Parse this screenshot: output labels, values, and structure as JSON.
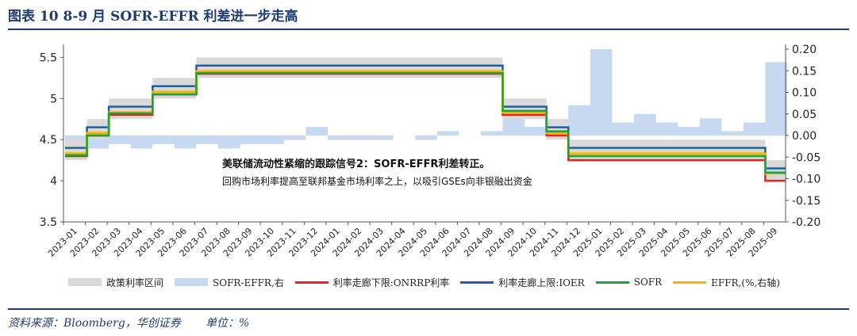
{
  "header": {
    "title": "图表 10   8-9 月 SOFR-EFFR 利差进一步走高"
  },
  "footer": {
    "source": "资料来源：Bloomberg，华创证券       单位：%"
  },
  "annotation": {
    "heading": "美联储流动性紧缩的跟踪信号2：SOFR-EFFR利差转正。",
    "body": "回购市场利率提高至联邦基金市场利率之上，以吸引GSEs向非银融出资金"
  },
  "legend": {
    "items": [
      {
        "label": "政策利率区间",
        "kind": "box",
        "color": "#d9d9d9"
      },
      {
        "label": "SOFR-EFFR,右",
        "kind": "box",
        "color": "#c6d9f1"
      },
      {
        "label": "利率走廊下限:ONRRP利率",
        "kind": "line",
        "color": "#e8221c"
      },
      {
        "label": "利率走廊上限:IOER",
        "kind": "line",
        "color": "#1f5faa"
      },
      {
        "label": "SOFR",
        "kind": "line",
        "color": "#1aa33a"
      },
      {
        "label": "EFFR,(%,右轴)",
        "kind": "line",
        "color": "#f6b400"
      }
    ]
  },
  "chart_data": {
    "type": "line",
    "x_tick_labels": [
      "2023-01",
      "2023-02",
      "2023-03",
      "2023-04",
      "2023-05",
      "2023-06",
      "2023-07",
      "2023-08",
      "2023-09",
      "2023-10",
      "2023-11",
      "2023-12",
      "2024-01",
      "2024-02",
      "2024-03",
      "2024-04",
      "2024-05",
      "2024-06",
      "2024-07",
      "2024-08",
      "2024-09",
      "2024-10",
      "2024-11",
      "2024-12",
      "2025-01",
      "2025-02",
      "2025-03",
      "2025-04",
      "2025-05",
      "2025-06",
      "2025-07",
      "2025-08",
      "2025-09"
    ],
    "left_axis": {
      "ylim": [
        3.5,
        5.6
      ],
      "ticks": [
        "3.5",
        "4",
        "4.5",
        "5",
        "5.5"
      ]
    },
    "right_axis": {
      "ylim": [
        -0.2,
        0.2
      ],
      "ticks": [
        "0.20",
        "0.15",
        "0.10",
        "0.05",
        "0.00",
        "-0.05",
        "-0.10",
        "-0.15",
        "-0.20"
      ]
    },
    "policy_range": {
      "segments": [
        {
          "from": "2023-01",
          "to": "2023-02",
          "lower": 4.25,
          "upper": 4.5
        },
        {
          "from": "2023-02",
          "to": "2023-03",
          "lower": 4.5,
          "upper": 4.75
        },
        {
          "from": "2023-03",
          "to": "2023-05",
          "lower": 4.75,
          "upper": 5.0
        },
        {
          "from": "2023-05",
          "to": "2023-07",
          "lower": 5.0,
          "upper": 5.25
        },
        {
          "from": "2023-07",
          "to": "2024-09",
          "lower": 5.25,
          "upper": 5.5
        },
        {
          "from": "2024-09",
          "to": "2024-11",
          "lower": 4.75,
          "upper": 5.0
        },
        {
          "from": "2024-11",
          "to": "2024-12",
          "lower": 4.5,
          "upper": 4.75
        },
        {
          "from": "2024-12",
          "to": "2025-09",
          "lower": 4.25,
          "upper": 4.5
        },
        {
          "from": "2025-09",
          "to": "2025-10",
          "lower": 4.0,
          "upper": 4.25
        }
      ]
    },
    "series": [
      {
        "name": "利率走廊下限:ONRRP利率",
        "axis": "left",
        "steps": [
          [
            "2023-01",
            4.3
          ],
          [
            "2023-02",
            4.55
          ],
          [
            "2023-03",
            4.8
          ],
          [
            "2023-05",
            5.05
          ],
          [
            "2023-07",
            5.3
          ],
          [
            "2024-09",
            4.8
          ],
          [
            "2024-11",
            4.55
          ],
          [
            "2024-12",
            4.25
          ],
          [
            "2025-09",
            4.0
          ]
        ]
      },
      {
        "name": "利率走廊上限:IOER",
        "axis": "left",
        "steps": [
          [
            "2023-01",
            4.4
          ],
          [
            "2023-02",
            4.65
          ],
          [
            "2023-03",
            4.9
          ],
          [
            "2023-05",
            5.15
          ],
          [
            "2023-07",
            5.4
          ],
          [
            "2024-09",
            4.9
          ],
          [
            "2024-11",
            4.65
          ],
          [
            "2024-12",
            4.4
          ],
          [
            "2025-09",
            4.15
          ]
        ]
      },
      {
        "name": "EFFR",
        "axis": "left",
        "steps": [
          [
            "2023-01",
            4.33
          ],
          [
            "2023-02",
            4.58
          ],
          [
            "2023-03",
            4.83
          ],
          [
            "2023-05",
            5.08
          ],
          [
            "2023-07",
            5.33
          ],
          [
            "2024-09",
            4.83
          ],
          [
            "2024-11",
            4.58
          ],
          [
            "2024-12",
            4.33
          ],
          [
            "2025-09",
            4.09
          ]
        ]
      },
      {
        "name": "SOFR",
        "axis": "left",
        "steps": [
          [
            "2023-01",
            4.31
          ],
          [
            "2023-02",
            4.55
          ],
          [
            "2023-03",
            4.82
          ],
          [
            "2023-05",
            5.05
          ],
          [
            "2023-07",
            5.31
          ],
          [
            "2024-09",
            4.85
          ],
          [
            "2024-11",
            4.6
          ],
          [
            "2024-12",
            4.3
          ],
          [
            "2025-09",
            4.1
          ]
        ]
      }
    ],
    "spread": {
      "name": "SOFR-EFFR,右",
      "axis": "right",
      "points": [
        [
          "2023-01",
          -0.02
        ],
        [
          "2023-02",
          -0.03
        ],
        [
          "2023-03",
          -0.02
        ],
        [
          "2023-04",
          -0.03
        ],
        [
          "2023-05",
          -0.02
        ],
        [
          "2023-06",
          -0.03
        ],
        [
          "2023-07",
          -0.02
        ],
        [
          "2023-08",
          -0.03
        ],
        [
          "2023-09",
          -0.02
        ],
        [
          "2023-10",
          -0.02
        ],
        [
          "2023-11",
          -0.01
        ],
        [
          "2023-12",
          0.02
        ],
        [
          "2024-01",
          -0.01
        ],
        [
          "2024-02",
          -0.01
        ],
        [
          "2024-03",
          -0.01
        ],
        [
          "2024-04",
          0.0
        ],
        [
          "2024-05",
          -0.01
        ],
        [
          "2024-06",
          0.01
        ],
        [
          "2024-07",
          0.0
        ],
        [
          "2024-08",
          0.01
        ],
        [
          "2024-09",
          0.05
        ],
        [
          "2024-10",
          0.02
        ],
        [
          "2024-11",
          0.03
        ],
        [
          "2024-12",
          0.07
        ],
        [
          "2025-01",
          0.2
        ],
        [
          "2025-02",
          0.03
        ],
        [
          "2025-03",
          0.05
        ],
        [
          "2025-04",
          0.03
        ],
        [
          "2025-05",
          0.02
        ],
        [
          "2025-06",
          0.04
        ],
        [
          "2025-07",
          0.01
        ],
        [
          "2025-08",
          0.03
        ],
        [
          "2025-09",
          0.17
        ]
      ]
    }
  }
}
